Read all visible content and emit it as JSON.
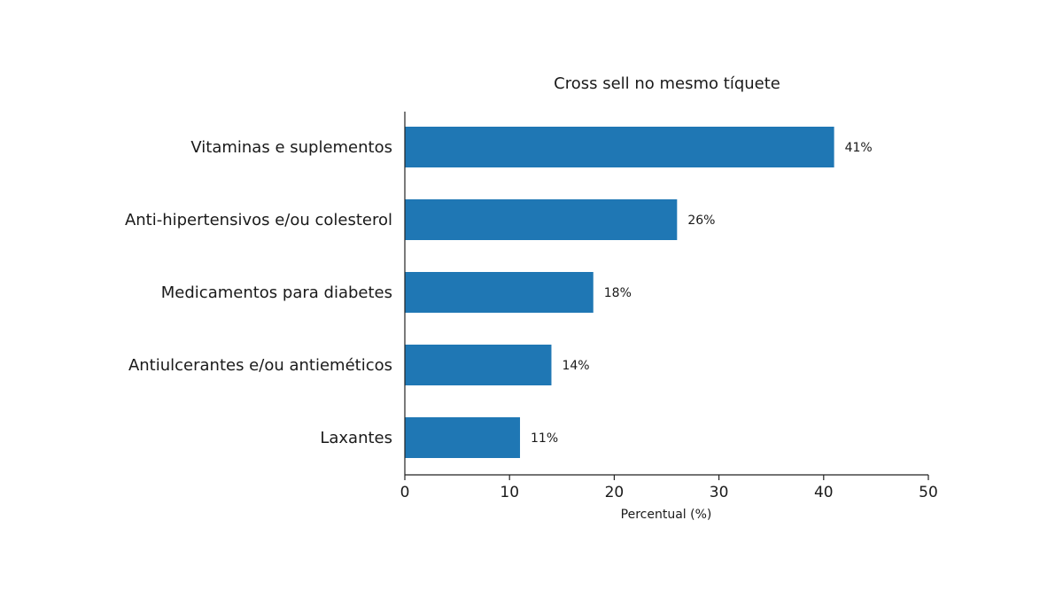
{
  "chart_data": {
    "type": "bar",
    "orientation": "horizontal",
    "title": "Cross sell no mesmo tíquete",
    "xlabel": "Percentual (%)",
    "ylabel": "",
    "categories": [
      "Vitaminas e suplementos",
      "Anti-hipertensivos e/ou colesterol",
      "Medicamentos para diabetes",
      "Antiulcerantes e/ou antieméticos",
      "Laxantes"
    ],
    "values": [
      41,
      26,
      18,
      14,
      11
    ],
    "value_labels": [
      "41%",
      "26%",
      "18%",
      "14%",
      "11%"
    ],
    "xlim": [
      0,
      50
    ],
    "xticks": [
      0,
      10,
      20,
      30,
      40,
      50
    ],
    "grid": false,
    "bar_color": "#1f77b4"
  }
}
